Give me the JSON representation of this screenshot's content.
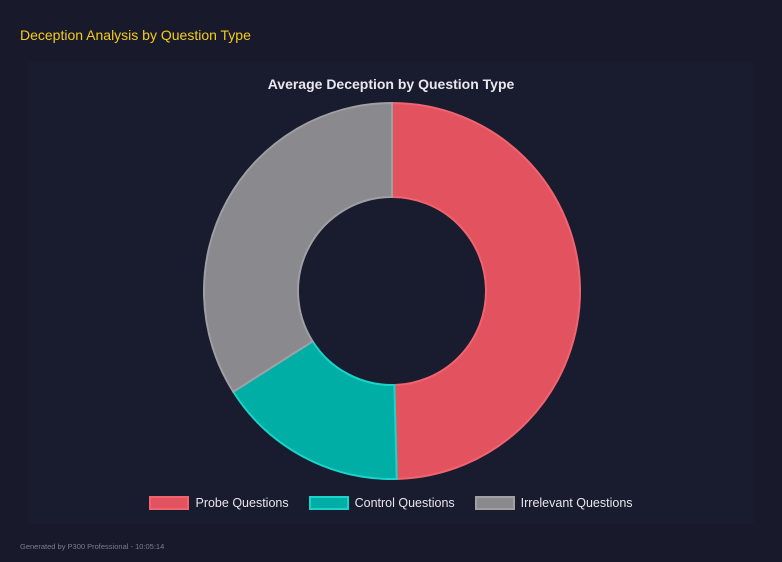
{
  "header": {
    "title": "Deception Analysis by Question Type"
  },
  "footer": {
    "text": "Generated by P300 Professional - 10:05:14"
  },
  "chart_data": {
    "type": "pie",
    "variant": "doughnut",
    "title": "Average Deception by Question Type",
    "categories": [
      "Probe Questions",
      "Control Questions",
      "Irrelevant Questions"
    ],
    "values": [
      49.6,
      16.4,
      34.0
    ],
    "colors": [
      "#e2535f",
      "#00aea6",
      "#89898e"
    ],
    "border_colors": [
      "#f06470",
      "#19d4c8",
      "#a0a0a4"
    ],
    "legend": "bottom"
  }
}
